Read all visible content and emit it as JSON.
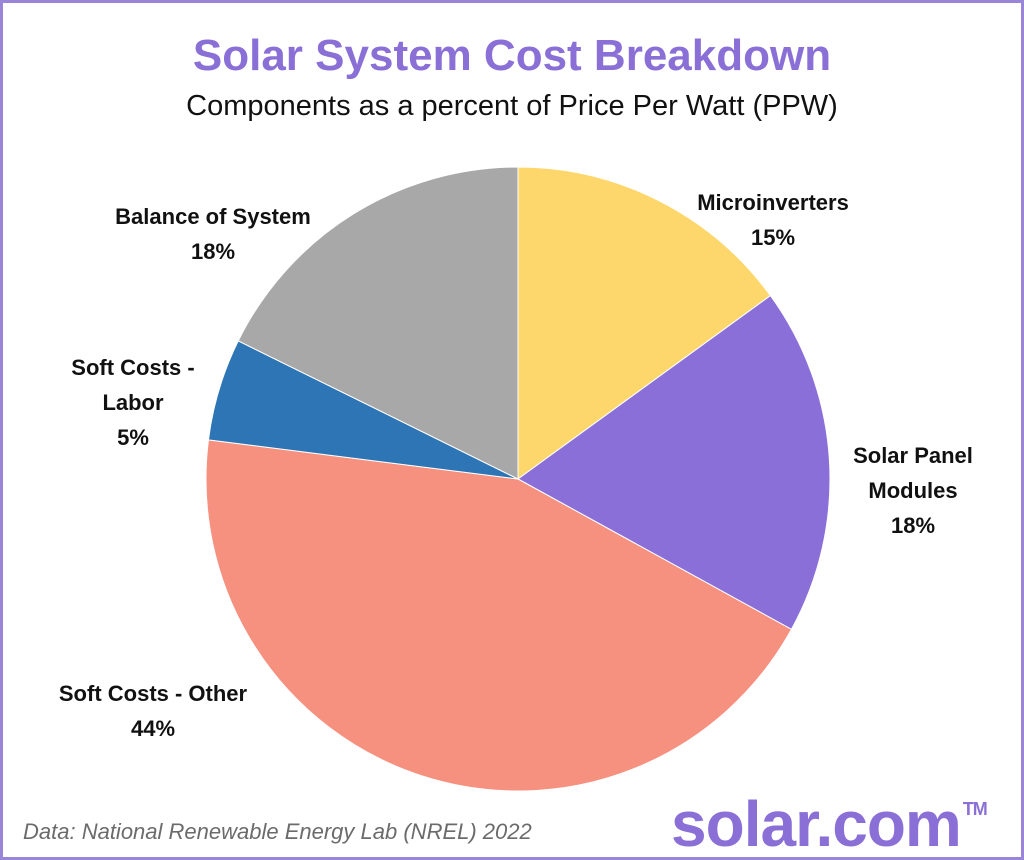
{
  "chart_data": {
    "type": "pie",
    "title": "Solar System Cost Breakdown",
    "subtitle": "Components as a percent of Price Per Watt (PPW)",
    "slices": [
      {
        "label": "Microinverters",
        "display": "15%",
        "value": 15,
        "color": "#fdd76c"
      },
      {
        "label": "Solar Panel Modules",
        "display": "18%",
        "value": 18,
        "color": "#8a6fd9"
      },
      {
        "label": "Soft Costs - Other",
        "display": "44%",
        "value": 44,
        "color": "#f6907f"
      },
      {
        "label": "Soft Costs - Labor",
        "display": "5%",
        "value": 5.3,
        "color": "#2e75b6"
      },
      {
        "label": "Balance of System",
        "display": "18%",
        "value": 17.7,
        "color": "#a8a8a8"
      }
    ],
    "start": "12 o'clock",
    "direction": "clockwise"
  },
  "labels": {
    "microinverters": {
      "line1": "Microinverters",
      "pct": "15%"
    },
    "solar_panel": {
      "line1": "Solar Panel",
      "line2": "Modules",
      "pct": "18%"
    },
    "soft_other": {
      "line1": "Soft Costs - Other",
      "pct": "44%"
    },
    "soft_labor": {
      "line1": "Soft Costs -",
      "line2": "Labor",
      "pct": "5%"
    },
    "balance": {
      "line1": "Balance of System",
      "pct": "18%"
    }
  },
  "source": "Data: National Renewable Energy Lab (NREL) 2022",
  "brand": {
    "name": "solar.com",
    "mark": "TM"
  }
}
